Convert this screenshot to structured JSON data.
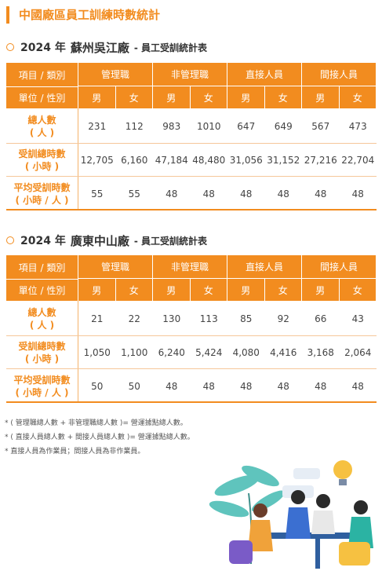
{
  "header": {
    "title": "中國廠區員工訓練時數統計"
  },
  "sections": [
    {
      "title": {
        "year": "2024 年",
        "plant": "蘇州吳江廠",
        "suffix": "- 員工受訓統計表"
      },
      "table": {
        "corner": "項目 / 類別",
        "groups": [
          "管理職",
          "非管理職",
          "直接人員",
          "間接人員"
        ],
        "subcorner": "單位 / 性別",
        "genders": [
          "男",
          "女",
          "男",
          "女",
          "男",
          "女",
          "男",
          "女"
        ],
        "rows": [
          {
            "label": [
              "總人數",
              "( 人 )"
            ],
            "cells": [
              "231",
              "112",
              "983",
              "1010",
              "647",
              "649",
              "567",
              "473"
            ]
          },
          {
            "label": [
              "受訓總時數",
              "( 小時 )"
            ],
            "cells": [
              "12,705",
              "6,160",
              "47,184",
              "48,480",
              "31,056",
              "31,152",
              "27,216",
              "22,704"
            ]
          },
          {
            "label": [
              "平均受訓時數",
              "( 小時 / 人 )"
            ],
            "cells": [
              "55",
              "55",
              "48",
              "48",
              "48",
              "48",
              "48",
              "48"
            ]
          }
        ]
      }
    },
    {
      "title": {
        "year": "2024 年",
        "plant": "廣東中山廠",
        "suffix": "- 員工受訓統計表"
      },
      "table": {
        "corner": "項目 / 類別",
        "groups": [
          "管理職",
          "非管理職",
          "直接人員",
          "間接人員"
        ],
        "subcorner": "單位 / 性別",
        "genders": [
          "男",
          "女",
          "男",
          "女",
          "男",
          "女",
          "男",
          "女"
        ],
        "rows": [
          {
            "label": [
              "總人數",
              "( 人 )"
            ],
            "cells": [
              "21",
              "22",
              "130",
              "113",
              "85",
              "92",
              "66",
              "43"
            ]
          },
          {
            "label": [
              "受訓總時數",
              "( 小時 )"
            ],
            "cells": [
              "1,050",
              "1,100",
              "6,240",
              "5,424",
              "4,080",
              "4,416",
              "3,168",
              "2,064"
            ]
          },
          {
            "label": [
              "平均受訓時數",
              "( 小時 / 人 )"
            ],
            "cells": [
              "50",
              "50",
              "48",
              "48",
              "48",
              "48",
              "48",
              "48"
            ]
          }
        ]
      }
    }
  ],
  "notes": [
    "* ( 管理職總人數 + 非管理職總人數 )= 營運據點總人數。",
    "* ( 直接人員總人數 + 間接人員總人數 )= 營運據點總人數。",
    "* 直接人員為作業員；間接人員為非作業員。"
  ]
}
